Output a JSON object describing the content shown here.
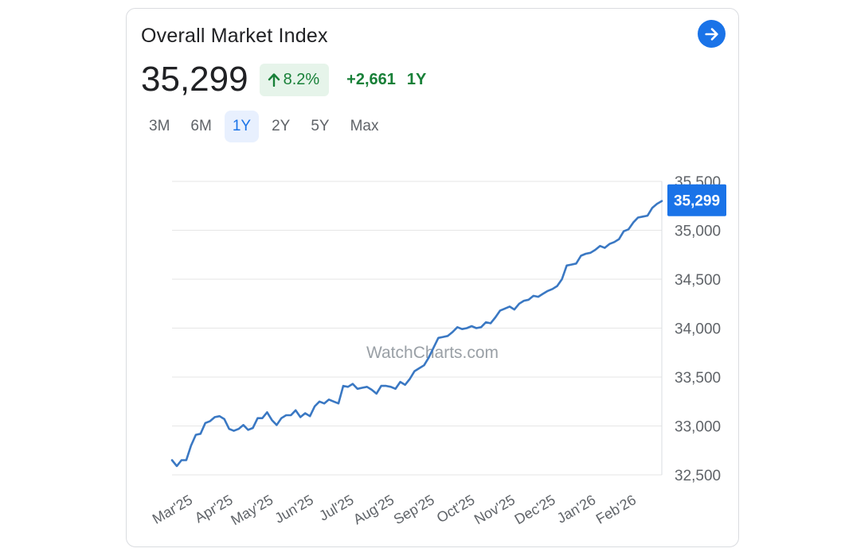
{
  "header": {
    "title": "Overall Market Index",
    "price": "35,299",
    "change_pct": "8.2%",
    "change_abs": "+2,661",
    "change_period": "1Y"
  },
  "ranges": [
    "3M",
    "6M",
    "1Y",
    "2Y",
    "5Y",
    "Max"
  ],
  "active_range": "1Y",
  "watermark": "WatchCharts.com",
  "current_label": "35,299",
  "colors": {
    "line": "#3a78c3",
    "accent": "#1a73e8",
    "positive": "#188038",
    "badge_bg": "#e6f4ea"
  },
  "chart_data": {
    "type": "line",
    "title": "",
    "xlabel": "",
    "ylabel": "",
    "ylim": [
      32500,
      35500
    ],
    "yticks": [
      32500,
      33000,
      33500,
      34000,
      34500,
      35000,
      35500
    ],
    "ytick_labels": [
      "32,500",
      "33,000",
      "33,500",
      "34,000",
      "34,500",
      "35,000",
      "35,500"
    ],
    "x_labels": [
      "Mar'25",
      "Apr'25",
      "May'25",
      "Jun'25",
      "Jul'25",
      "Aug'25",
      "Sep'25",
      "Oct'25",
      "Nov'25",
      "Dec'25",
      "Jan'26",
      "Feb'26"
    ],
    "grid": true,
    "series": [
      {
        "values": [
          32650,
          32590,
          32650,
          32650,
          32800,
          32910,
          32920,
          33030,
          33050,
          33090,
          33100,
          33070,
          32970,
          32950,
          32970,
          33010,
          32960,
          32980,
          33080,
          33080,
          33140,
          33060,
          33010,
          33080,
          33110,
          33110,
          33160,
          33090,
          33130,
          33100,
          33200,
          33250,
          33230,
          33270,
          33250,
          33230,
          33410,
          33400,
          33430,
          33380,
          33390,
          33400,
          33370,
          33330,
          33410,
          33410,
          33400,
          33380,
          33450,
          33420,
          33480,
          33560,
          33590,
          33620,
          33700,
          33800,
          33900,
          33910,
          33920,
          33960,
          34010,
          33990,
          34000,
          34020,
          34000,
          34010,
          34060,
          34050,
          34110,
          34180,
          34200,
          34220,
          34190,
          34250,
          34280,
          34290,
          34330,
          34320,
          34350,
          34380,
          34400,
          34430,
          34500,
          34640,
          34650,
          34660,
          34740,
          34760,
          34770,
          34800,
          34840,
          34820,
          34860,
          34880,
          34910,
          34990,
          35010,
          35080,
          35130,
          35140,
          35150,
          35230,
          35270,
          35299
        ]
      }
    ]
  }
}
